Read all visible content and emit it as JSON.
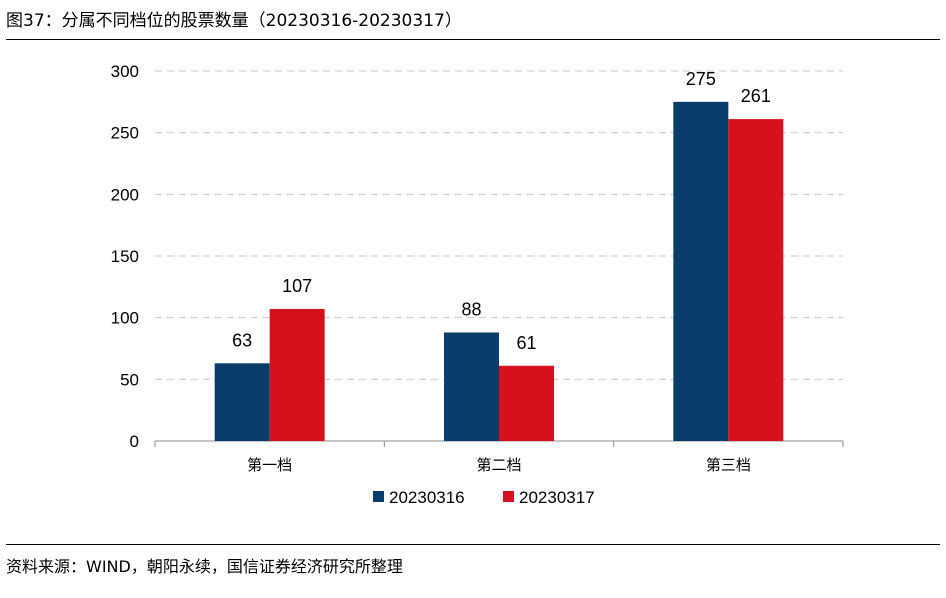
{
  "figure": {
    "title": "图37：分属不同档位的股票数量（20230316-20230317）",
    "source": "资料来源：WIND，朝阳永续，国信证券经济研究所整理"
  },
  "chart_data": {
    "type": "bar",
    "title": "图37：分属不同档位的股票数量（20230316-20230317）",
    "categories": [
      "第一档",
      "第二档",
      "第三档"
    ],
    "series": [
      {
        "name": "20230316",
        "values": [
          63,
          88,
          275
        ],
        "color": "#0a3d6b"
      },
      {
        "name": "20230317",
        "values": [
          107,
          61,
          261
        ],
        "color": "#d7101d"
      }
    ],
    "ylim": [
      0,
      300
    ],
    "yticks": [
      0,
      50,
      100,
      150,
      200,
      250,
      300
    ],
    "grid": true,
    "legend": "bottom"
  }
}
